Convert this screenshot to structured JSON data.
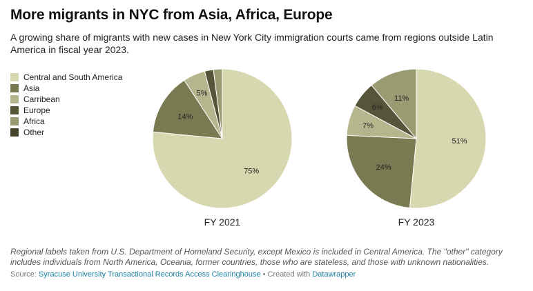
{
  "title": "More migrants in NYC from Asia, Africa, Europe",
  "subtitle": "A growing share of migrants with new cases in New York City immigration courts came from regions outside Latin America in fiscal year 2023.",
  "legend": [
    {
      "label": "Central and South America",
      "color": "#d8d8b0"
    },
    {
      "label": "Asia",
      "color": "#7a7a52"
    },
    {
      "label": "Carribean",
      "color": "#b5b58e"
    },
    {
      "label": "Europe",
      "color": "#55553a"
    },
    {
      "label": "Africa",
      "color": "#9b9b73"
    },
    {
      "label": "Other",
      "color": "#45452c"
    }
  ],
  "chart_data": [
    {
      "type": "pie",
      "title": "FY 2021",
      "slices": [
        {
          "name": "Central and South America",
          "value": 75,
          "label": "75%"
        },
        {
          "name": "Asia",
          "value": 14,
          "label": "14%"
        },
        {
          "name": "Carribean",
          "value": 5,
          "label": "5%"
        },
        {
          "name": "Europe",
          "value": 2,
          "label": ""
        },
        {
          "name": "Africa",
          "value": 2,
          "label": ""
        },
        {
          "name": "Other",
          "value": 0,
          "label": ""
        }
      ]
    },
    {
      "type": "pie",
      "title": "FY 2023",
      "slices": [
        {
          "name": "Central and South America",
          "value": 51,
          "label": "51%"
        },
        {
          "name": "Asia",
          "value": 24,
          "label": "24%"
        },
        {
          "name": "Carribean",
          "value": 7,
          "label": "7%"
        },
        {
          "name": "Europe",
          "value": 6,
          "label": "6%"
        },
        {
          "name": "Africa",
          "value": 11,
          "label": "11%"
        },
        {
          "name": "Other",
          "value": 0,
          "label": ""
        }
      ]
    }
  ],
  "notes": "Regional labels taken from U.S. Department of Homeland Security, except Mexico is included in Central America. The \"other\" category includes individuals from North America, Oceania, former countries, those who are stateless, and those with unknown nationalities.",
  "source": {
    "prefix": "Source: ",
    "org": "Syracuse University Transactional Records Access Clearinghouse",
    "separator": " • Created with ",
    "tool": "Datawrapper"
  }
}
